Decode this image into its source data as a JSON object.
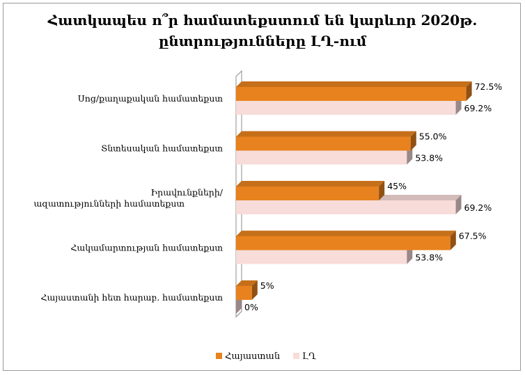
{
  "chart_data": {
    "type": "bar",
    "orientation": "horizontal",
    "title_line1": "Հատկապես ո՞ր համատեքստում են կարևոր 2020թ.",
    "title_line2": "ընտրությունները ԼՂ-ում",
    "categories": [
      "Սոց/քաղաքական համատեքստ",
      "Տնտեսական համատեքստ",
      "Իրավունքների/ ազատությունների համատեքստ",
      "Հակամարտության համատեքստ",
      "Հայաստանի հետ հարաբ. համատեքստ"
    ],
    "series": [
      {
        "name": "Հայաստան",
        "color": "#E8821E",
        "values": [
          72.5,
          55.0,
          45,
          67.5,
          5
        ],
        "labels": [
          "72.5%",
          "55.0%",
          "45%",
          "67.5%",
          "5%"
        ]
      },
      {
        "name": "ԼՂ",
        "color": "#F7DCDA",
        "values": [
          69.2,
          53.8,
          69.2,
          53.8,
          0
        ],
        "labels": [
          "69.2%",
          "53.8%",
          "69.2%",
          "53.8%",
          "0%"
        ]
      }
    ],
    "xlim": [
      0,
      100
    ],
    "grid": false,
    "legend_position": "bottom",
    "style": "3d"
  }
}
